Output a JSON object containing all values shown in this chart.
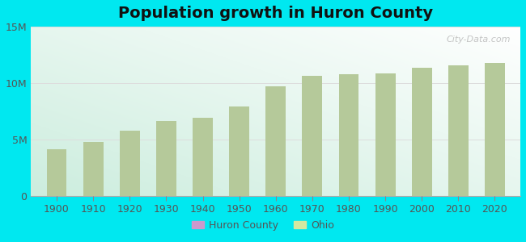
{
  "title": "Population growth in Huron County",
  "years": [
    1900,
    1910,
    1920,
    1930,
    1940,
    1950,
    1960,
    1970,
    1980,
    1990,
    2000,
    2010,
    2020
  ],
  "ohio_population": [
    4157545,
    4767121,
    5759394,
    6646697,
    6907612,
    7946627,
    9706397,
    10652017,
    10797630,
    10847115,
    11353140,
    11536504,
    11799448
  ],
  "bar_color": "#b5c99a",
  "background_outer": "#00e8f0",
  "background_plot_tl": "#cceedd",
  "background_plot_tr": "#eefaf5",
  "background_plot_br": "#f5fff8",
  "ylim": [
    0,
    15000000
  ],
  "yticks": [
    0,
    5000000,
    10000000,
    15000000
  ],
  "ytick_labels": [
    "0",
    "5M",
    "10M",
    "15M"
  ],
  "watermark": "City-Data.com",
  "legend_huron_color": "#cc99cc",
  "legend_ohio_color": "#d4e8a0",
  "bar_width": 5.5,
  "grid_color": "#dddddd",
  "title_fontsize": 14,
  "tick_fontsize": 9,
  "xlim": [
    1893,
    2027
  ]
}
